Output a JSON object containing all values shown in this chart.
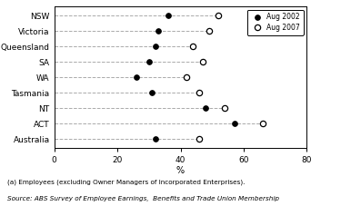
{
  "categories": [
    "NSW",
    "Victoria",
    "Queensland",
    "SA",
    "WA",
    "Tasmania",
    "NT",
    "ACT",
    "Australia"
  ],
  "aug2002": [
    36,
    33,
    32,
    30,
    26,
    31,
    48,
    57,
    32
  ],
  "aug2007": [
    52,
    49,
    44,
    47,
    42,
    46,
    54,
    66,
    46
  ],
  "color2002": "#000000",
  "color2007": "#000000",
  "xlim": [
    0,
    80
  ],
  "xticks": [
    0,
    20,
    40,
    60,
    80
  ],
  "xlabel": "%",
  "footnote1": "(a) Employees (excluding Owner Managers of Incorporated Enterprises).",
  "footnote2": "Source: ABS Survey of Employee Earnings,  Benefits and Trade Union Membership",
  "legend_label2002": "Aug 2002",
  "legend_label2007": "Aug 2007",
  "bg_color": "#ffffff",
  "dashed_color": "#aaaaaa"
}
